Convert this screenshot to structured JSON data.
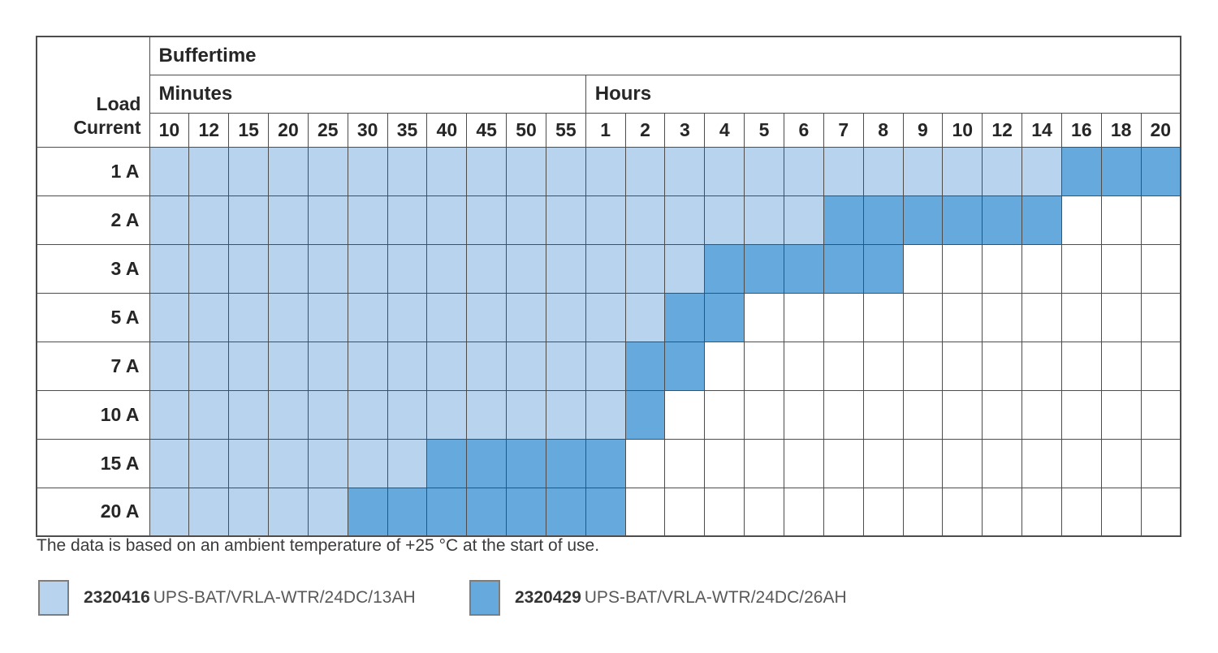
{
  "colors": {
    "light": "#B8D3EE",
    "dark": "#66A9DC",
    "grid": "#4D4D4D"
  },
  "chart_data": {
    "type": "table",
    "title": "Buffertime",
    "corner_label": [
      "Load",
      "Current"
    ],
    "column_groups": [
      {
        "label": "Minutes",
        "span": 11
      },
      {
        "label": "Hours",
        "span": 15
      }
    ],
    "columns": [
      "10",
      "12",
      "15",
      "20",
      "25",
      "30",
      "35",
      "40",
      "45",
      "50",
      "55",
      "1",
      "2",
      "3",
      "4",
      "5",
      "6",
      "7",
      "8",
      "9",
      "10",
      "12",
      "14",
      "16",
      "18",
      "20"
    ],
    "column_units": [
      "min",
      "min",
      "min",
      "min",
      "min",
      "min",
      "min",
      "min",
      "min",
      "min",
      "min",
      "h",
      "h",
      "h",
      "h",
      "h",
      "h",
      "h",
      "h",
      "h",
      "h",
      "h",
      "h",
      "h",
      "h",
      "h"
    ],
    "cell_codes": {
      "L": "2320416 UPS-BAT/VRLA-WTR/24DC/13AH",
      "D": "2320429 UPS-BAT/VRLA-WTR/24DC/26AH",
      "W": "empty"
    },
    "rows": [
      {
        "label": "1 A",
        "cells": "LLLLLLLLLLLLLLLLLLLLLLLDDD"
      },
      {
        "label": "2 A",
        "cells": "LLLLLLLLLLLLLLLLLDDDDDDWWW"
      },
      {
        "label": "3 A",
        "cells": "LLLLLLLLLLLLLLDDDDDWWWWWWW"
      },
      {
        "label": "5 A",
        "cells": "LLLLLLLLLLLLLDDWWWWWWWWWWW"
      },
      {
        "label": "7 A",
        "cells": "LLLLLLLLLLLLDDWWWWWWWWWWWW"
      },
      {
        "label": "10 A",
        "cells": "LLLLLLLLLLLLDWWWWWWWWWWWWW"
      },
      {
        "label": "15 A",
        "cells": "LLLLLLLDDDDDWWWWWWWWWWWWWW"
      },
      {
        "label": "20 A",
        "cells": "LLLLLDDDDDDDWWWWWWWWWWWWWW"
      }
    ]
  },
  "note": "The data is based on an ambient temperature of +25 °C at the start of use.",
  "legend": {
    "items": [
      {
        "code": "2320416",
        "label": "UPS-BAT/VRLA-WTR/24DC/13AH",
        "color": "#B8D3EE"
      },
      {
        "code": "2320429",
        "label": "UPS-BAT/VRLA-WTR/24DC/26AH",
        "color": "#66A9DC"
      }
    ]
  }
}
